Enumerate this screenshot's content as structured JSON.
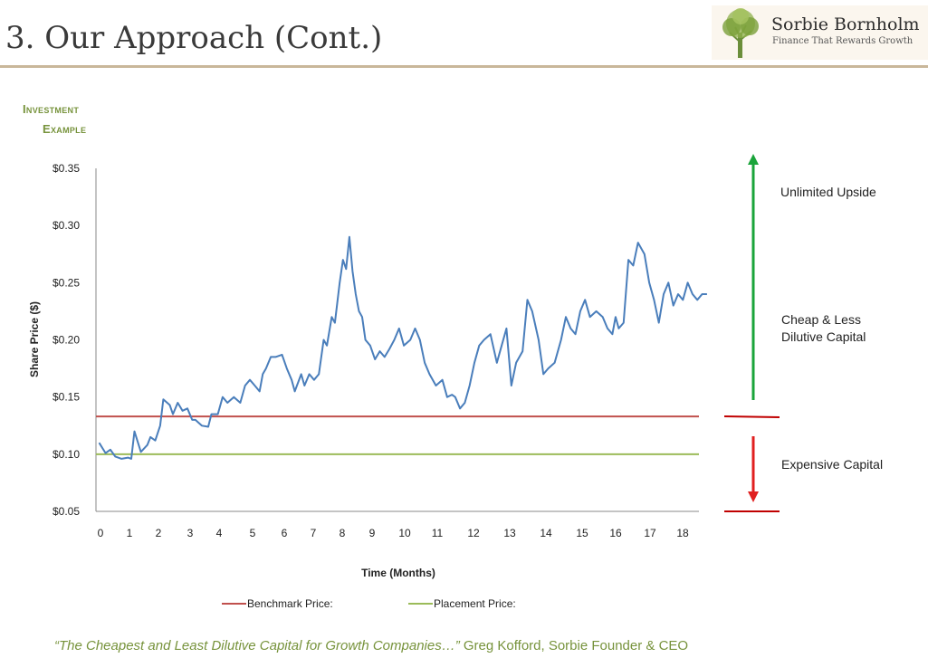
{
  "header": {
    "title": "3. Our Approach (Cont.)",
    "logo_name": "Sorbie Bornholm",
    "logo_tagline": "Finance That Rewards Growth"
  },
  "section": {
    "line1": "Investment",
    "line2": "Example"
  },
  "chart_data": {
    "type": "line",
    "xlabel": "Time (Months)",
    "ylabel": "Share Price ($)",
    "ylim": [
      0.05,
      0.35
    ],
    "xlim": [
      -0.1,
      18.7
    ],
    "y_ticks": [
      "$0.35",
      "$0.30",
      "$0.25",
      "$0.20",
      "$0.15",
      "$0.10",
      "$0.05"
    ],
    "y_tick_values": [
      0.35,
      0.3,
      0.25,
      0.2,
      0.15,
      0.1,
      0.05
    ],
    "x_ticks": [
      "0",
      "1",
      "2",
      "3",
      "4",
      "5",
      "6",
      "7",
      "8",
      "9",
      "10",
      "11",
      "12",
      "13",
      "14",
      "15",
      "16",
      "17",
      "18"
    ],
    "series": [
      {
        "name": "Share Price",
        "color": "#4a7ebb",
        "points": [
          [
            0.0,
            0.11
          ],
          [
            0.2,
            0.101
          ],
          [
            0.35,
            0.104
          ],
          [
            0.5,
            0.098
          ],
          [
            0.7,
            0.096
          ],
          [
            0.9,
            0.097
          ],
          [
            1.0,
            0.096
          ],
          [
            1.1,
            0.12
          ],
          [
            1.3,
            0.102
          ],
          [
            1.5,
            0.108
          ],
          [
            1.6,
            0.115
          ],
          [
            1.75,
            0.112
          ],
          [
            1.9,
            0.125
          ],
          [
            2.0,
            0.148
          ],
          [
            2.2,
            0.143
          ],
          [
            2.3,
            0.135
          ],
          [
            2.45,
            0.145
          ],
          [
            2.6,
            0.138
          ],
          [
            2.75,
            0.14
          ],
          [
            2.9,
            0.13
          ],
          [
            3.0,
            0.13
          ],
          [
            3.2,
            0.125
          ],
          [
            3.4,
            0.124
          ],
          [
            3.5,
            0.135
          ],
          [
            3.7,
            0.135
          ],
          [
            3.85,
            0.15
          ],
          [
            4.0,
            0.145
          ],
          [
            4.2,
            0.15
          ],
          [
            4.4,
            0.145
          ],
          [
            4.55,
            0.16
          ],
          [
            4.7,
            0.165
          ],
          [
            4.85,
            0.16
          ],
          [
            5.0,
            0.155
          ],
          [
            5.1,
            0.17
          ],
          [
            5.2,
            0.175
          ],
          [
            5.35,
            0.185
          ],
          [
            5.5,
            0.185
          ],
          [
            5.7,
            0.187
          ],
          [
            5.85,
            0.175
          ],
          [
            6.0,
            0.165
          ],
          [
            6.1,
            0.155
          ],
          [
            6.3,
            0.17
          ],
          [
            6.4,
            0.16
          ],
          [
            6.55,
            0.17
          ],
          [
            6.7,
            0.165
          ],
          [
            6.85,
            0.17
          ],
          [
            7.0,
            0.2
          ],
          [
            7.1,
            0.195
          ],
          [
            7.25,
            0.22
          ],
          [
            7.35,
            0.215
          ],
          [
            7.5,
            0.25
          ],
          [
            7.6,
            0.27
          ],
          [
            7.7,
            0.262
          ],
          [
            7.8,
            0.29
          ],
          [
            7.9,
            0.26
          ],
          [
            8.0,
            0.24
          ],
          [
            8.1,
            0.225
          ],
          [
            8.2,
            0.22
          ],
          [
            8.3,
            0.2
          ],
          [
            8.45,
            0.195
          ],
          [
            8.6,
            0.183
          ],
          [
            8.75,
            0.19
          ],
          [
            8.9,
            0.185
          ],
          [
            9.05,
            0.192
          ],
          [
            9.2,
            0.2
          ],
          [
            9.35,
            0.21
          ],
          [
            9.5,
            0.195
          ],
          [
            9.7,
            0.2
          ],
          [
            9.85,
            0.21
          ],
          [
            10.0,
            0.2
          ],
          [
            10.15,
            0.18
          ],
          [
            10.3,
            0.17
          ],
          [
            10.5,
            0.16
          ],
          [
            10.7,
            0.165
          ],
          [
            10.85,
            0.15
          ],
          [
            11.0,
            0.152
          ],
          [
            11.1,
            0.15
          ],
          [
            11.25,
            0.14
          ],
          [
            11.4,
            0.145
          ],
          [
            11.55,
            0.16
          ],
          [
            11.7,
            0.18
          ],
          [
            11.85,
            0.195
          ],
          [
            12.0,
            0.2
          ],
          [
            12.2,
            0.205
          ],
          [
            12.4,
            0.18
          ],
          [
            12.55,
            0.195
          ],
          [
            12.7,
            0.21
          ],
          [
            12.85,
            0.16
          ],
          [
            13.0,
            0.18
          ],
          [
            13.2,
            0.19
          ],
          [
            13.35,
            0.235
          ],
          [
            13.5,
            0.225
          ],
          [
            13.7,
            0.2
          ],
          [
            13.85,
            0.17
          ],
          [
            14.0,
            0.175
          ],
          [
            14.2,
            0.18
          ],
          [
            14.4,
            0.2
          ],
          [
            14.55,
            0.22
          ],
          [
            14.7,
            0.21
          ],
          [
            14.85,
            0.205
          ],
          [
            15.0,
            0.225
          ],
          [
            15.15,
            0.235
          ],
          [
            15.3,
            0.22
          ],
          [
            15.5,
            0.225
          ],
          [
            15.7,
            0.22
          ],
          [
            15.85,
            0.21
          ],
          [
            16.0,
            0.205
          ],
          [
            16.1,
            0.22
          ],
          [
            16.2,
            0.21
          ],
          [
            16.35,
            0.215
          ],
          [
            16.5,
            0.27
          ],
          [
            16.65,
            0.265
          ],
          [
            16.8,
            0.285
          ],
          [
            17.0,
            0.275
          ],
          [
            17.15,
            0.25
          ],
          [
            17.3,
            0.235
          ],
          [
            17.45,
            0.215
          ],
          [
            17.6,
            0.24
          ],
          [
            17.75,
            0.25
          ],
          [
            17.9,
            0.23
          ],
          [
            18.05,
            0.24
          ],
          [
            18.2,
            0.235
          ],
          [
            18.35,
            0.25
          ],
          [
            18.5,
            0.24
          ],
          [
            18.65,
            0.235
          ],
          [
            18.8,
            0.24
          ],
          [
            18.95,
            0.24
          ]
        ]
      }
    ],
    "reference_lines": [
      {
        "name": "Benchmark Price:",
        "value": 0.133,
        "color": "#c0504d"
      },
      {
        "name": "Placement Price:",
        "value": 0.1,
        "color": "#9bbb59"
      }
    ],
    "annotations": {
      "upside": "Unlimited Upside",
      "cheap_line1": "Cheap & Less",
      "cheap_line2": "Dilutive Capital",
      "expensive": "Expensive Capital",
      "up_color": "#1aa43a",
      "down_color": "#e02020",
      "bar_color": "#c00000"
    },
    "grid": false,
    "legend": "bottom"
  },
  "quote": {
    "text": "“The Cheapest and Least Dilutive Capital for Growth Companies…”",
    "author": "Greg Kofford, Sorbie Founder & CEO"
  }
}
